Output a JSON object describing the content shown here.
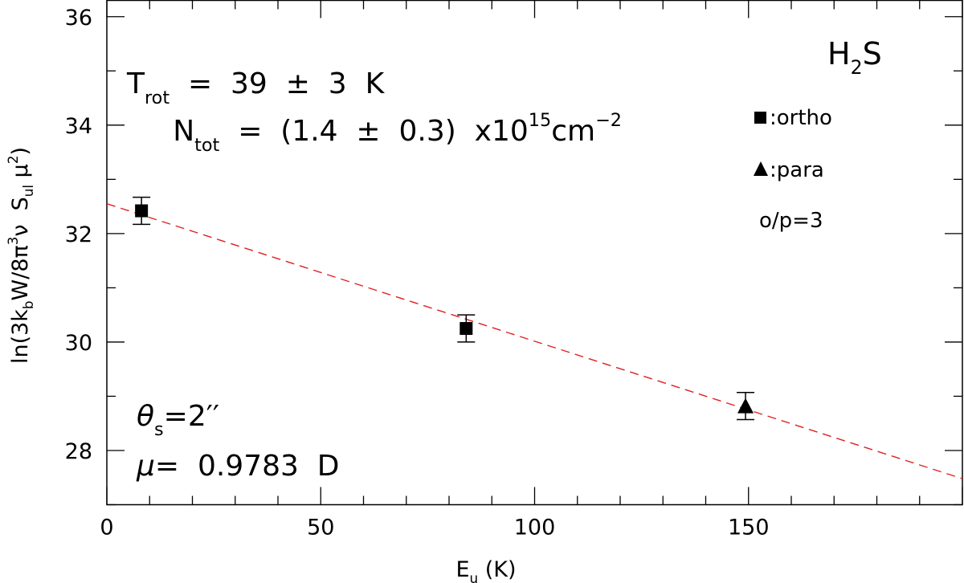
{
  "chart_data": {
    "type": "scatter",
    "molecule": {
      "base": "H",
      "sub": "2",
      "rest": "S"
    },
    "xlabel": {
      "base": "E",
      "sub": "u",
      "rest": " (K)"
    },
    "ylabel": {
      "p1": "ln(3k",
      "p1_sub": "b",
      "p2": "W/8π",
      "p2_sup": "3",
      "p3": "ν  S",
      "p3_sub": "ul",
      "p4": " μ",
      "p4_sup": "2",
      "p5": ")"
    },
    "xlim": [
      0,
      200
    ],
    "ylim": [
      27,
      36.3
    ],
    "xticks": [
      0,
      50,
      100,
      150
    ],
    "yticks": [
      28,
      30,
      32,
      34,
      36
    ],
    "xtick_labels": [
      "0",
      "50",
      "100",
      "150"
    ],
    "ytick_labels": [
      "28",
      "30",
      "32",
      "34",
      "36"
    ],
    "series": [
      {
        "name": "ortho",
        "marker": "square",
        "points": [
          {
            "x": 8.1,
            "y": 32.42,
            "err": 0.25
          },
          {
            "x": 84.0,
            "y": 30.25,
            "err": 0.25
          }
        ]
      },
      {
        "name": "para",
        "marker": "triangle",
        "points": [
          {
            "x": 149.3,
            "y": 28.82,
            "err": 0.25
          }
        ]
      }
    ],
    "fit_line": {
      "x": [
        0,
        200
      ],
      "y": [
        32.55,
        27.48
      ],
      "color": "#e02020",
      "style": "dashed"
    },
    "annotations": {
      "trot": {
        "base": "T",
        "sub": "rot",
        "rest": "  =  39  ±  3  K"
      },
      "ntot": {
        "base": "N",
        "sub": "tot",
        "rest": "  =  (1.4  ±  0.3)  x10",
        "sup": "15",
        "rest2": "cm",
        "sup2": "−2"
      },
      "theta": {
        "base": "θ",
        "sub": "s",
        "rest": "=2′′"
      },
      "mu": {
        "base": "μ",
        "rest": "=  0.9783  D"
      },
      "ortho_label": ":ortho",
      "para_label": ":para",
      "op_ratio": "o/p=3"
    }
  }
}
